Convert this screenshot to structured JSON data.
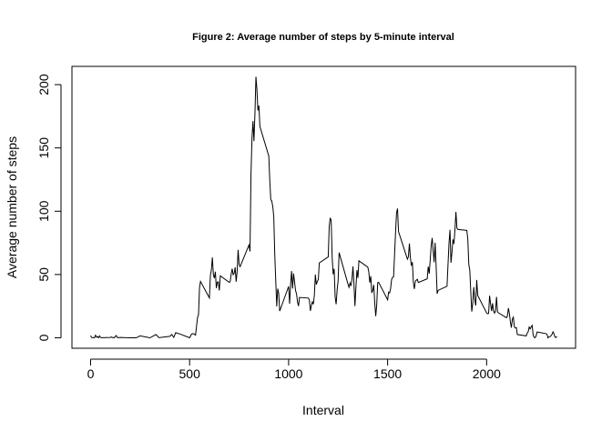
{
  "chart_data": {
    "type": "line",
    "title": "Figure 2: Average number of steps by 5-minute interval",
    "x_label": "Interval",
    "y_label": "Average number of steps",
    "color": "#000000",
    "xlim": [
      -94.2,
      2449.2
    ],
    "ylim": [
      -8.25,
      214.42
    ],
    "xticks": [
      0,
      500,
      1000,
      1500,
      2000
    ],
    "yticks": [
      0,
      50,
      100,
      150,
      200
    ],
    "x": [
      0,
      5,
      10,
      15,
      20,
      25,
      30,
      35,
      40,
      45,
      50,
      55,
      100,
      105,
      110,
      115,
      120,
      125,
      130,
      135,
      140,
      150,
      200,
      230,
      250,
      300,
      330,
      345,
      400,
      410,
      420,
      430,
      440,
      450,
      500,
      510,
      520,
      530,
      540,
      545,
      550,
      555,
      600,
      605,
      610,
      615,
      620,
      625,
      630,
      635,
      640,
      645,
      650,
      655,
      700,
      705,
      710,
      715,
      720,
      725,
      730,
      735,
      740,
      745,
      750,
      755,
      800,
      805,
      810,
      815,
      820,
      825,
      830,
      835,
      840,
      845,
      850,
      855,
      900,
      905,
      910,
      915,
      920,
      925,
      930,
      935,
      940,
      945,
      950,
      955,
      1000,
      1005,
      1010,
      1015,
      1020,
      1025,
      1030,
      1035,
      1040,
      1045,
      1050,
      1055,
      1100,
      1105,
      1110,
      1115,
      1120,
      1125,
      1130,
      1135,
      1140,
      1145,
      1150,
      1155,
      1200,
      1205,
      1210,
      1215,
      1220,
      1225,
      1230,
      1235,
      1240,
      1245,
      1250,
      1255,
      1300,
      1305,
      1310,
      1315,
      1320,
      1325,
      1330,
      1335,
      1340,
      1345,
      1350,
      1355,
      1400,
      1405,
      1410,
      1415,
      1420,
      1425,
      1430,
      1435,
      1440,
      1445,
      1450,
      1455,
      1500,
      1505,
      1510,
      1515,
      1520,
      1525,
      1530,
      1535,
      1540,
      1545,
      1550,
      1555,
      1600,
      1605,
      1610,
      1615,
      1620,
      1625,
      1630,
      1635,
      1640,
      1645,
      1650,
      1655,
      1700,
      1705,
      1710,
      1715,
      1720,
      1725,
      1730,
      1735,
      1740,
      1745,
      1750,
      1755,
      1800,
      1805,
      1810,
      1815,
      1820,
      1825,
      1830,
      1835,
      1840,
      1845,
      1850,
      1855,
      1900,
      1905,
      1910,
      1915,
      1920,
      1925,
      1930,
      1935,
      1940,
      1945,
      1950,
      1955,
      2000,
      2005,
      2010,
      2015,
      2020,
      2025,
      2030,
      2035,
      2040,
      2045,
      2050,
      2055,
      2100,
      2105,
      2110,
      2115,
      2120,
      2125,
      2130,
      2135,
      2140,
      2145,
      2150,
      2155,
      2200,
      2205,
      2210,
      2215,
      2220,
      2225,
      2230,
      2235,
      2240,
      2245,
      2250,
      2255,
      2300,
      2305,
      2310,
      2315,
      2320,
      2325,
      2330,
      2335,
      2340,
      2345,
      2350,
      2355
    ],
    "values": [
      1.7,
      0.3,
      0.1,
      0.2,
      0.1,
      2.1,
      0.5,
      0.9,
      0,
      1.5,
      0.3,
      0.1,
      0.3,
      0.7,
      0.2,
      0.3,
      0,
      1.1,
      1.8,
      0.2,
      0.2,
      0.3,
      0,
      0,
      1.5,
      0,
      2.6,
      0.1,
      1.2,
      2.6,
      0.3,
      4.1,
      3.5,
      3.1,
      0,
      3,
      3.3,
      2.1,
      16,
      18.3,
      39.5,
      44.5,
      31.5,
      49.3,
      53.8,
      63.5,
      50,
      47.1,
      52.2,
      39.3,
      44,
      44.2,
      37.4,
      49,
      43.8,
      44.4,
      50.5,
      54.5,
      49.9,
      50.9,
      55.7,
      44.3,
      52.3,
      69.5,
      57.8,
      56.2,
      73.4,
      68.2,
      129.4,
      157.5,
      171.2,
      155.4,
      177.3,
      206.2,
      195.9,
      179.6,
      183.4,
      167,
      143.5,
      124,
      109.1,
      108.1,
      103.7,
      95.97,
      66.2,
      45.2,
      24.8,
      38.8,
      34.98,
      21.1,
      40.6,
      26.98,
      42.4,
      52.7,
      38.9,
      50.8,
      44.3,
      37.4,
      34.7,
      28.3,
      25.1,
      31.9,
      31.4,
      29.7,
      21.3,
      25.5,
      28.4,
      26.5,
      33.4,
      49.98,
      42,
      44.6,
      46,
      59.2,
      63.9,
      87.7,
      94.8,
      92.8,
      63.4,
      50.2,
      54.5,
      32.4,
      26.5,
      37.7,
      45.1,
      67.3,
      42.3,
      39.9,
      43.3,
      40.98,
      46.2,
      56.4,
      42.8,
      25.1,
      39.97,
      53.5,
      47.3,
      60.8,
      55.8,
      51.96,
      43.6,
      48.7,
      35.5,
      37.5,
      41.8,
      27.5,
      17.1,
      26.1,
      43.6,
      43.8,
      30,
      36.1,
      35.5,
      38.8,
      45.96,
      47.75,
      48.1,
      65.3,
      82.9,
      98.7,
      102.1,
      83.96,
      62.1,
      64.1,
      74.5,
      63.2,
      56.9,
      59.8,
      43.9,
      38.6,
      44.7,
      45.5,
      46.2,
      43.7,
      46.6,
      56.3,
      50.7,
      61.2,
      72.7,
      78.9,
      68.9,
      59.7,
      75.1,
      56.5,
      34.8,
      37.5,
      40.7,
      58,
      74.7,
      85.3,
      59.3,
      67.8,
      77.7,
      74.2,
      85.3,
      99.5,
      86.6,
      85.6,
      84.9,
      77.8,
      58,
      53.4,
      36.3,
      20.7,
      27.4,
      40,
      30.2,
      25.5,
      45.7,
      33.5,
      19.6,
      19,
      19.3,
      33.3,
      26.8,
      21.2,
      27.3,
      21.3,
      19.5,
      21.3,
      32.3,
      20.2,
      15.9,
      17.2,
      23.5,
      19.2,
      12.5,
      8,
      14.7,
      16.3,
      8.7,
      7.8,
      8.1,
      2.6,
      1.5,
      3.7,
      4.8,
      8.5,
      7.1,
      8.7,
      9.8,
      2.2,
      0.3,
      0.1,
      1.6,
      4.6,
      3.3,
      2.8,
      0,
      0.8,
      0.96,
      1.6,
      2.6,
      4.7,
      3.3,
      0.6,
      0.2,
      1.1
    ]
  }
}
